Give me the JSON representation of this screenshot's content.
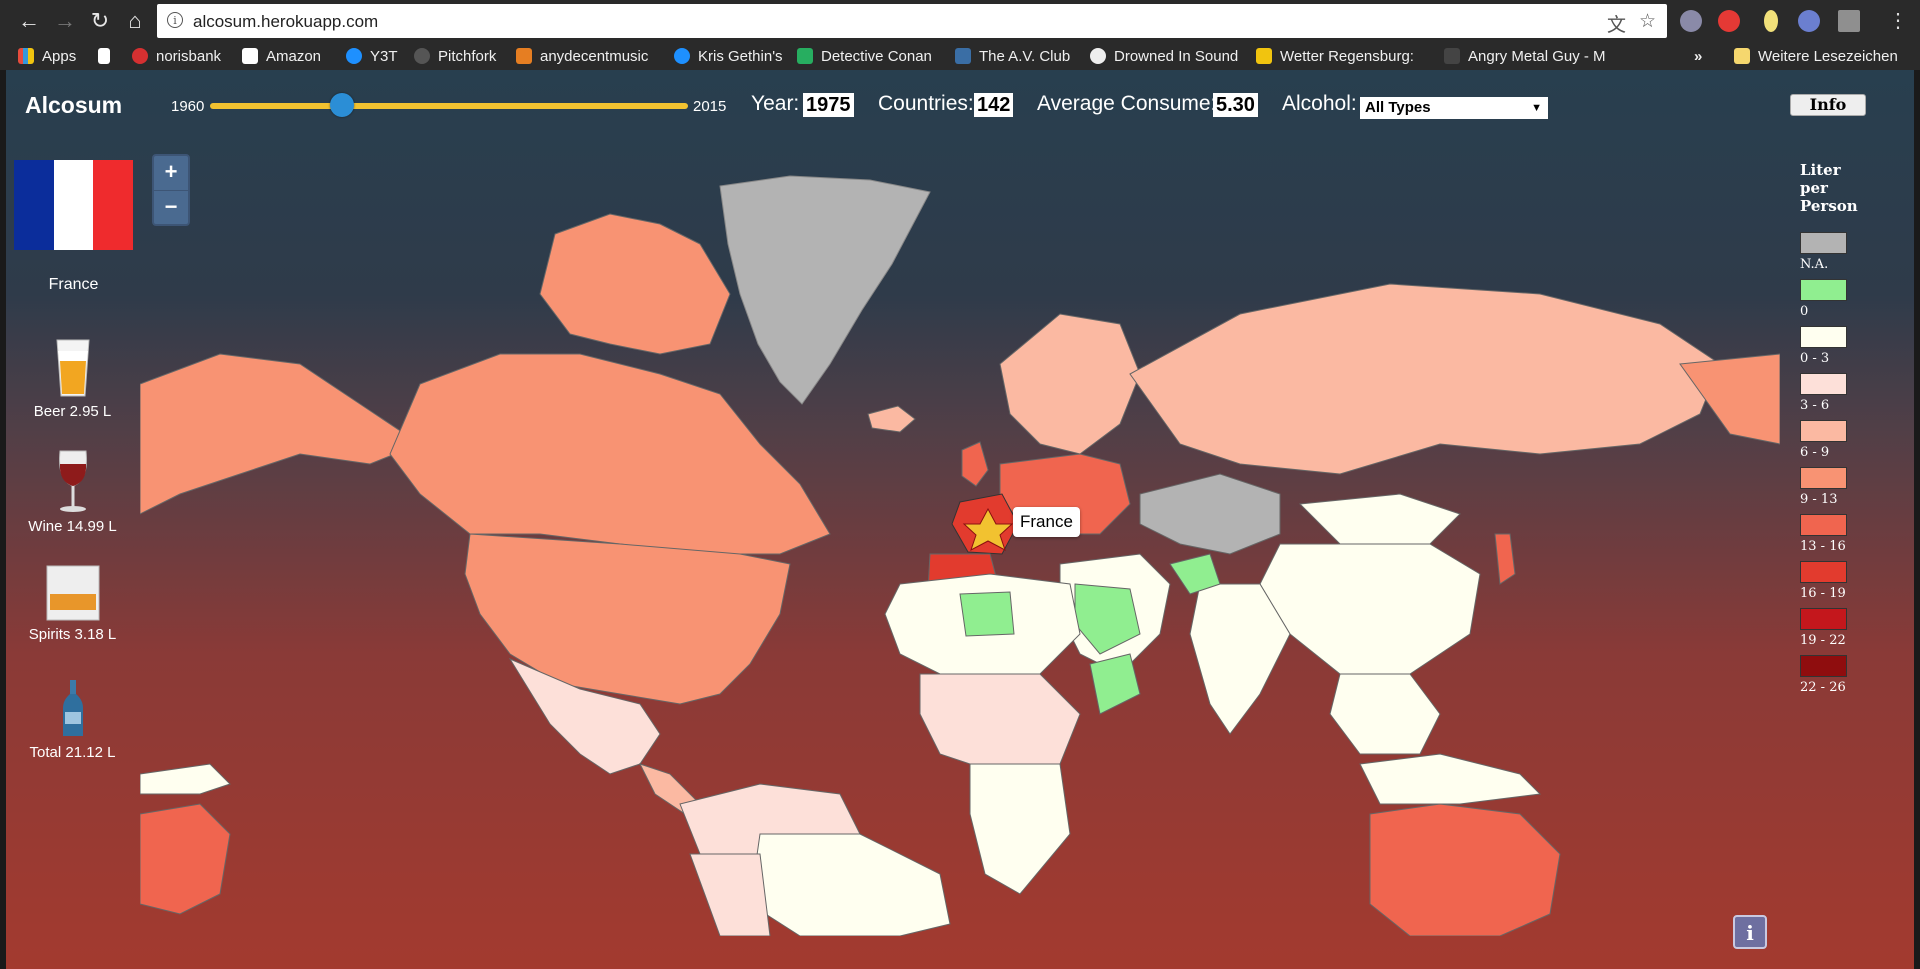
{
  "browser": {
    "url": "alcosum.herokuapp.com",
    "bookmarks": [
      {
        "label": "Apps",
        "color": "#e74c3c"
      },
      {
        "label": "",
        "color": "#cccccc"
      },
      {
        "label": "norisbank",
        "color": "#d63031"
      },
      {
        "label": "Amazon",
        "color": "#ffffff"
      },
      {
        "label": "Y3T",
        "color": "#1e90ff"
      },
      {
        "label": "Pitchfork",
        "color": "#777777"
      },
      {
        "label": "anydecentmusic",
        "color": "#e67e22"
      },
      {
        "label": "Kris Gethin's",
        "color": "#1e90ff"
      },
      {
        "label": "Detective Conan",
        "color": "#27ae60"
      },
      {
        "label": "The A.V. Club",
        "color": "#3a6ea5"
      },
      {
        "label": "Drowned In Sound",
        "color": "#eeeeee"
      },
      {
        "label": "Wetter Regensburg:",
        "color": "#f1c40f"
      },
      {
        "label": "Angry Metal Guy - M",
        "color": "#555555"
      }
    ],
    "more": "»",
    "other_bookmarks": "Weitere Lesezeichen"
  },
  "app": {
    "title": "Alcosum",
    "slider": {
      "min_label": "1960",
      "max_label": "2015",
      "value": 1975
    },
    "year_label": "Year:",
    "year_value": "1975",
    "countries_label": "Countries:",
    "countries_value": "142",
    "avg_label": "Average Consume:",
    "avg_value": "5.30",
    "alcohol_label": "Alcohol:",
    "alcohol_selected": "All Types",
    "info_button": "Info",
    "bottom_info_button": "i",
    "tooltip": "France",
    "zoom_in": "+",
    "zoom_out": "−"
  },
  "selection": {
    "country": "France",
    "flag_colors": [
      "#0b2d9b",
      "#ffffff",
      "#ef2b2d"
    ],
    "drinks": [
      {
        "label": "Beer 2.95 L",
        "icon": "beer-glass-icon"
      },
      {
        "label": "Wine 14.99 L",
        "icon": "wine-glass-icon"
      },
      {
        "label": "Spirits 3.18 L",
        "icon": "spirits-glass-icon"
      },
      {
        "label": "Total 21.12 L",
        "icon": "bottle-icon"
      }
    ]
  },
  "legend": {
    "title_lines": [
      "Liter",
      "per",
      "Person"
    ],
    "items": [
      {
        "label": "N.A.",
        "color": "#b3b3b3"
      },
      {
        "label": "0",
        "color": "#90ee90"
      },
      {
        "label": "0 - 3",
        "color": "#fffff0"
      },
      {
        "label": "3 - 6",
        "color": "#fde0d9"
      },
      {
        "label": "6 - 9",
        "color": "#fbb9a2"
      },
      {
        "label": "9 - 13",
        "color": "#f89373"
      },
      {
        "label": "13 - 16",
        "color": "#f0654f"
      },
      {
        "label": "16 - 19",
        "color": "#e23b2e"
      },
      {
        "label": "19 - 22",
        "color": "#c4171c"
      },
      {
        "label": "22 - 26",
        "color": "#8f0d0e"
      }
    ]
  }
}
